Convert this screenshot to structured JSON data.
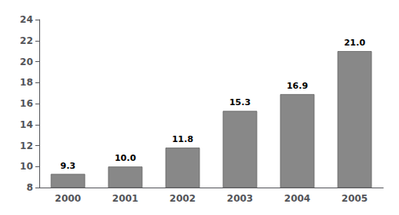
{
  "chart_data": {
    "type": "bar",
    "categories": [
      "2000",
      "2001",
      "2002",
      "2003",
      "2004",
      "2005"
    ],
    "values": [
      9.3,
      10.0,
      11.8,
      15.3,
      16.9,
      21.0
    ],
    "value_labels": [
      "9.3",
      "10.0",
      "11.8",
      "15.3",
      "16.9",
      "21.0"
    ],
    "color": "#888888",
    "ylim": [
      8,
      24
    ],
    "yticks": [
      8,
      10,
      12,
      14,
      16,
      18,
      20,
      22,
      24
    ],
    "grid": false,
    "data_labels": true
  }
}
